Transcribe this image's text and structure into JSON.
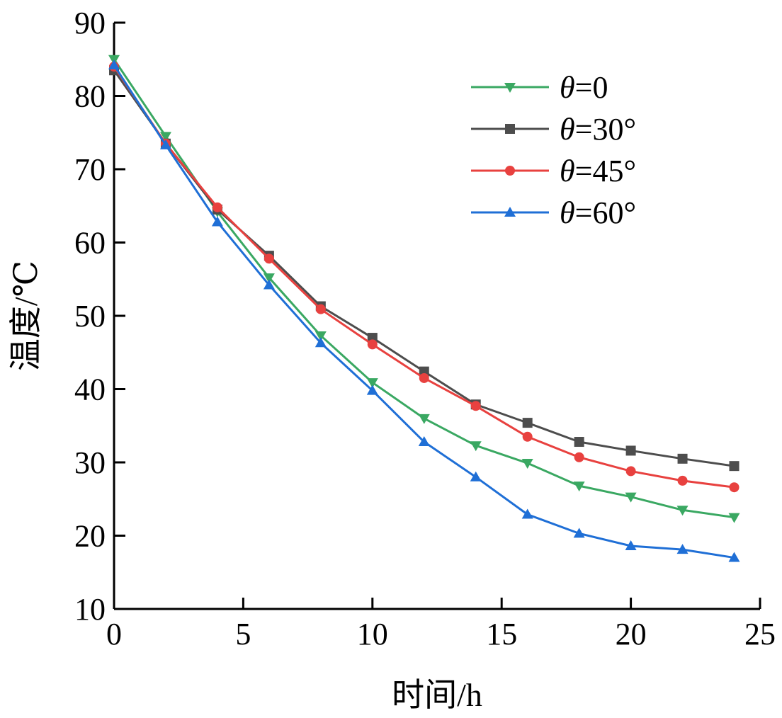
{
  "chart_data": {
    "type": "line",
    "title": "",
    "xlabel": "时间/h",
    "ylabel": "温度/℃",
    "xlim": [
      0,
      25
    ],
    "ylim": [
      10,
      90
    ],
    "xticks": [
      "0",
      "5",
      "10",
      "15",
      "20",
      "25"
    ],
    "yticks": [
      "10",
      "20",
      "30",
      "40",
      "50",
      "60",
      "70",
      "80",
      "90"
    ],
    "grid": false,
    "legend_position": "top-right",
    "x": [
      0,
      2,
      4,
      6,
      8,
      10,
      12,
      14,
      16,
      18,
      20,
      22,
      24
    ],
    "series": [
      {
        "name": "θ=0",
        "symbol": "θ",
        "suffix": "=0",
        "marker": "triangle-down",
        "color": "#3aa862",
        "values": [
          85.0,
          74.5,
          64.2,
          55.2,
          47.3,
          40.9,
          36.0,
          32.3,
          29.9,
          26.8,
          25.3,
          23.5,
          22.5
        ]
      },
      {
        "name": "θ=30°",
        "symbol": "θ",
        "suffix": "=30°",
        "marker": "square",
        "color": "#4d4d4d",
        "values": [
          83.5,
          73.5,
          64.5,
          58.2,
          51.3,
          47.0,
          42.4,
          37.9,
          35.4,
          32.8,
          31.6,
          30.5,
          29.5
        ]
      },
      {
        "name": "θ=45°",
        "symbol": "θ",
        "suffix": "=45°",
        "marker": "circle",
        "color": "#e8413f",
        "values": [
          84.0,
          73.5,
          64.8,
          57.8,
          50.9,
          46.1,
          41.5,
          37.7,
          33.5,
          30.7,
          28.8,
          27.5,
          26.6
        ]
      },
      {
        "name": "θ=60°",
        "symbol": "θ",
        "suffix": "=60°",
        "marker": "triangle-up",
        "color": "#1f6fd6",
        "values": [
          84.2,
          73.3,
          62.8,
          54.2,
          46.3,
          39.8,
          32.8,
          28.0,
          22.9,
          20.3,
          18.6,
          18.1,
          17.0
        ]
      }
    ]
  }
}
